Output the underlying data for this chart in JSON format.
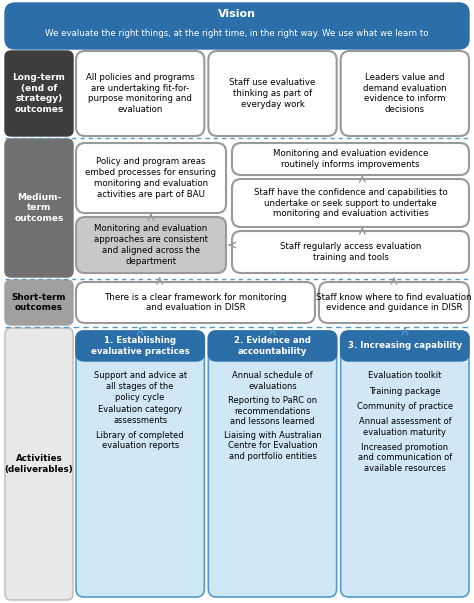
{
  "title": "Vision",
  "subtitle": "We evaluate the right things, at the right time, in the right way. We use what we learn to",
  "vision_bg": "#2b6ea8",
  "vision_text_color": "#ffffff",
  "row_labels": [
    "Long-term\n(end of\nstrategy)\noutcomes",
    "Medium-\nterm\noutcomes",
    "Short-term\noutcomes",
    "Activities\n(deliverables)"
  ],
  "long_term_boxes": [
    "All policies and programs\nare undertaking fit-for-\npurpose monitoring and\nevaluation",
    "Staff use evaluative\nthinking as part of\neveryday work",
    "Leaders value and\ndemand evaluation\nevidence to inform\ndecisions"
  ],
  "medium_term_boxes": [
    "Policy and program areas\nembed processes for ensuring\nmonitoring and evaluation\nactivities are part of BAU",
    "Monitoring and evaluation\napproaches are consistent\nand aligned across the\ndepartment",
    "Monitoring and evaluation evidence\nroutinely informs improvements",
    "Staff have the confidence and capabilities to\nundertake or seek support to undertake\nmonitoring and evaluation activities",
    "Staff regularly access evaluation\ntraining and tools"
  ],
  "short_term_boxes": [
    "There is a clear framework for monitoring\nand evaluation in DISR",
    "Staff know where to find evaluation\nevidence and guidance in DISR"
  ],
  "activity_headers": [
    "1. Establishing\nevaluative practices",
    "2. Evidence and\naccountability",
    "3. Increasing capability"
  ],
  "activity_items": [
    [
      "Support and advice at\nall stages of the\npolicy cycle",
      "Evaluation category\nassessments",
      "Library of completed\nevaluation reports"
    ],
    [
      "Annual schedule of\nevaluations",
      "Reporting to PaRC on\nrecommendations\nand lessons learned",
      "Liaising with Australian\nCentre for Evaluation\nand portfolio entities"
    ],
    [
      "Evaluation toolkit",
      "Training package",
      "Community of practice",
      "Annual assessment of\nevaluation maturity",
      "Increased promotion\nand communication of\navailable resources"
    ]
  ],
  "fig_bg": "#ffffff",
  "border_color": "#ffffff",
  "row_label_lt_bg": "#3d3d3d",
  "row_label_mt_bg": "#707070",
  "row_label_st_bg": "#a0a0a0",
  "row_label_act_bg": "#e8e8e8",
  "dotted_color": "#5599cc",
  "arrow_color": "#999999",
  "box_white": "#ffffff",
  "box_gray": "#c8c8c8",
  "box_edge": "#999999",
  "act_col_bg": "#d0e8f5",
  "act_header_bg": "#2b6ea8",
  "act_header_text": "#ffffff",
  "act_col_edge": "#5599cc"
}
